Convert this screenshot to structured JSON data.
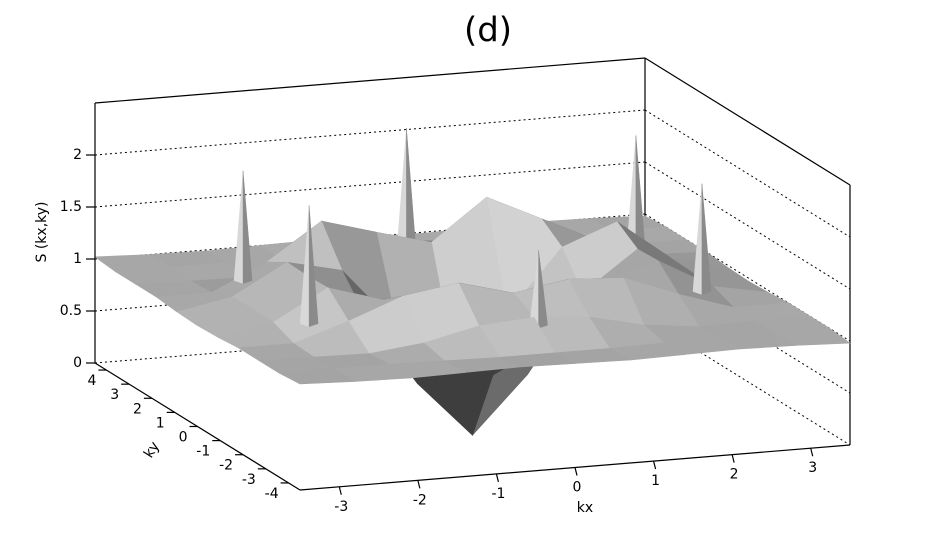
{
  "chart_data": {
    "type": "surface3d",
    "title": "(d)",
    "xlabel": "kx",
    "ylabel": "ky",
    "zlabel": "S (kx,ky)",
    "xlim": [
      -3.5,
      3.5
    ],
    "ylim": [
      -4.5,
      4.5
    ],
    "zlim": [
      0,
      2.5
    ],
    "xticks": [
      -3,
      -2,
      -1,
      0,
      1,
      2,
      3
    ],
    "yticks": [
      -4,
      -3,
      -2,
      -1,
      0,
      1,
      2,
      3,
      4
    ],
    "zticks": [
      0,
      0.5,
      1,
      1.5,
      2
    ],
    "grid": true,
    "color": "#d0d0d0",
    "x": [
      -3.5,
      -2.8,
      -2.1,
      -1.4,
      -0.7,
      0,
      0.7,
      1.4,
      2.1,
      2.8,
      3.5
    ],
    "y": [
      -4.5,
      -3.6,
      -2.7,
      -1.8,
      -0.9,
      0,
      0.9,
      1.8,
      2.7,
      3.6,
      4.5
    ],
    "z": [
      [
        1.02,
        1,
        0.99,
        1,
        1.01,
        1,
        0.99,
        1,
        1.01,
        1,
        0.98
      ],
      [
        1,
        1,
        1,
        0.99,
        0.98,
        0.98,
        0.98,
        0.99,
        1,
        1,
        1
      ],
      [
        1,
        0.99,
        0.98,
        1.04,
        1.16,
        1.2,
        1.16,
        1.04,
        0.98,
        0.99,
        1
      ],
      [
        1,
        1,
        1.17,
        1.37,
        1.45,
        1.31,
        1.4,
        1.37,
        1.17,
        1,
        1
      ],
      [
        0.98,
        1.08,
        1.37,
        1.21,
        0.67,
        0.4,
        0.67,
        1.21,
        1.37,
        1.08,
        0.98
      ],
      [
        0.97,
        1.09,
        1.36,
        0.98,
        0.24,
        -0.3,
        0.24,
        0.98,
        1.36,
        1.09,
        0.97
      ],
      [
        0.98,
        1.08,
        1.37,
        1.25,
        0.67,
        0.4,
        0.7,
        1.3,
        1.5,
        1.1,
        0.98
      ],
      [
        1,
        1,
        1.25,
        1.6,
        1.45,
        1.31,
        1.7,
        1.45,
        1.2,
        1.02,
        1
      ],
      [
        1,
        0.99,
        0.98,
        1.04,
        1.16,
        1.2,
        1.16,
        1.04,
        0.98,
        0.99,
        1
      ],
      [
        1,
        1,
        1,
        0.99,
        0.98,
        0.98,
        0.98,
        0.99,
        1,
        1,
        1
      ],
      [
        1.02,
        1,
        0.99,
        1,
        1.01,
        1,
        0.99,
        1,
        1.01,
        1,
        0.98
      ]
    ],
    "peaks": {
      "x": [
        -2.5,
        -2.5,
        0,
        0,
        2.5,
        2.5
      ],
      "y": [
        1.45,
        -1.45,
        2.9,
        -2.9,
        1.45,
        -1.45
      ],
      "z": [
        2.2,
        2.26,
        2.26,
        1.87,
        2.23,
        2.16
      ]
    }
  }
}
